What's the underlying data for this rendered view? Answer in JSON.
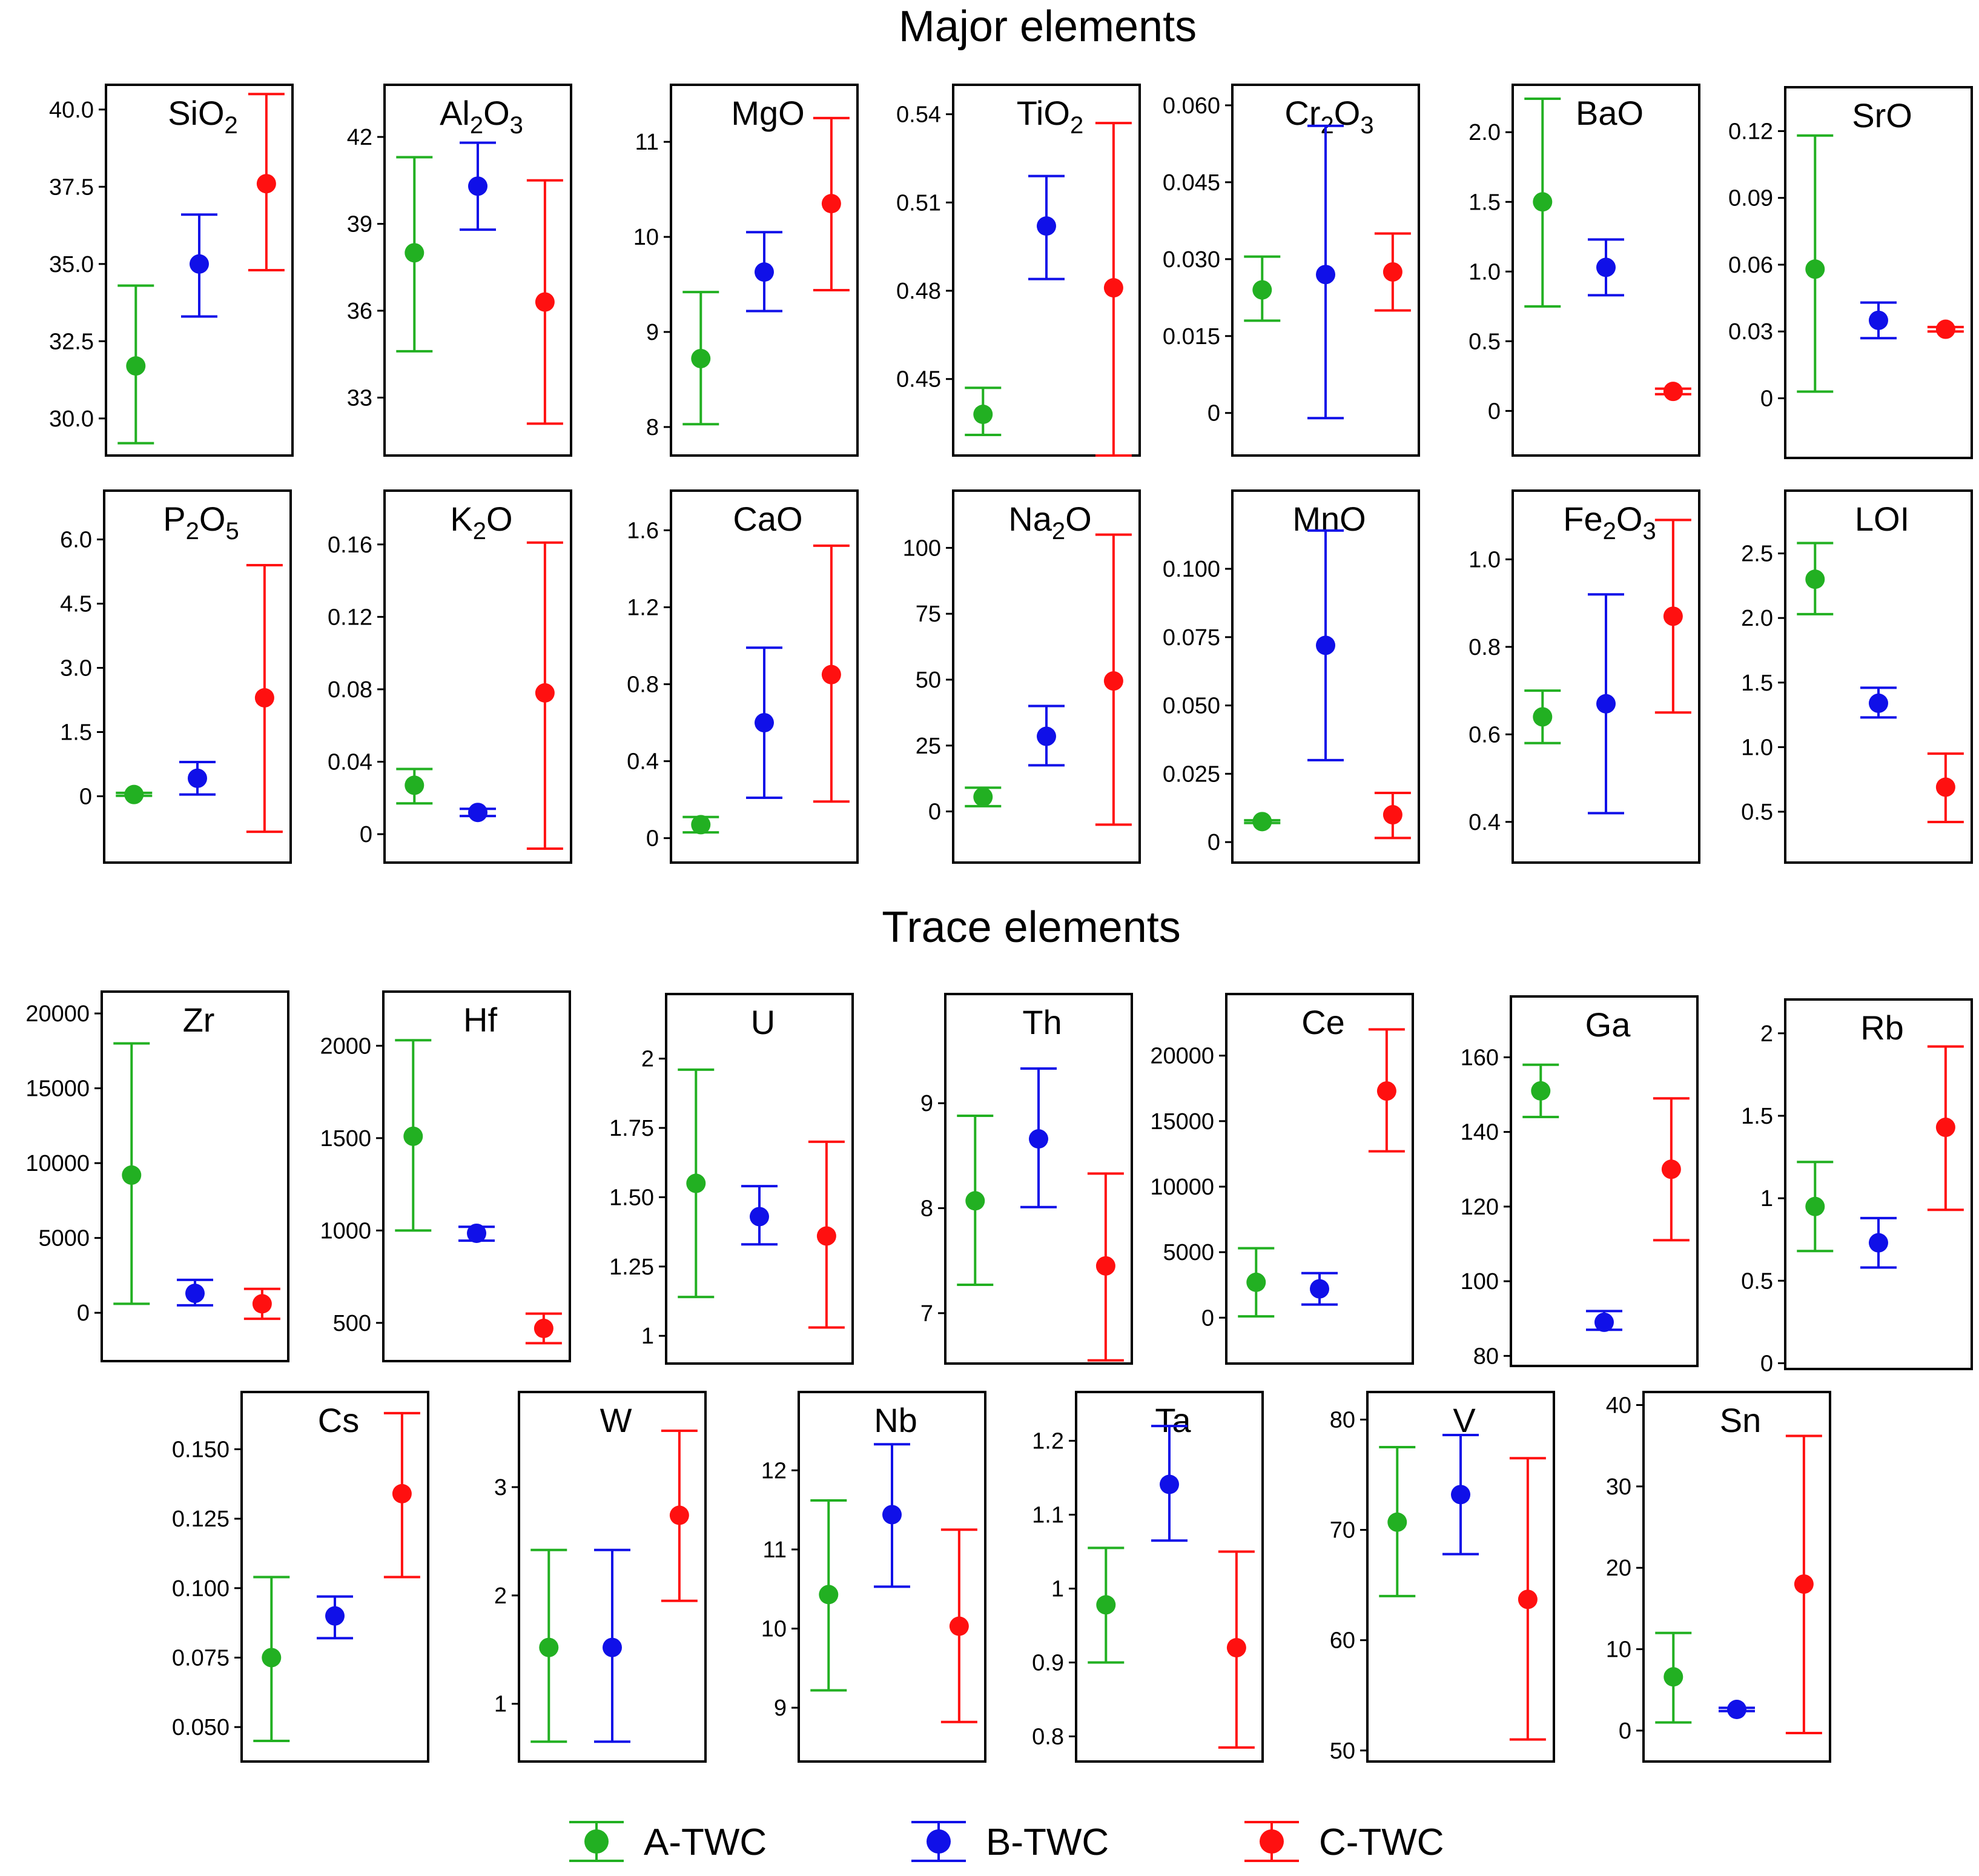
{
  "sections": {
    "major_title": "Major elements",
    "trace_title": "Trace elements"
  },
  "series": [
    {
      "name": "A-TWC",
      "color": "#22b022"
    },
    {
      "name": "B-TWC",
      "color": "#1010e8"
    },
    {
      "name": "C-TWC",
      "color": "#ff1010"
    }
  ],
  "chart_data": [
    {
      "type": "errorbar",
      "title": "SiO",
      "sub": "2",
      "ylim": [
        28.8,
        40.8
      ],
      "ticks": [
        30.0,
        32.5,
        35.0,
        37.5,
        40.0
      ],
      "tick_labels": [
        "30.0",
        "32.5",
        "35.0",
        "37.5",
        "40.0"
      ],
      "points": [
        {
          "series": "A-TWC",
          "mean": 31.7,
          "low": 29.2,
          "high": 34.3
        },
        {
          "series": "B-TWC",
          "mean": 35.0,
          "low": 33.3,
          "high": 36.6
        },
        {
          "series": "C-TWC",
          "mean": 37.6,
          "low": 34.8,
          "high": 40.5
        }
      ]
    },
    {
      "type": "errorbar",
      "title": "Al",
      "sub": "2",
      "title2": "O",
      "sub2": "3",
      "ylim": [
        31.0,
        43.8
      ],
      "ticks": [
        33,
        36,
        39,
        42
      ],
      "tick_labels": [
        "33",
        "36",
        "39",
        "42"
      ],
      "points": [
        {
          "series": "A-TWC",
          "mean": 38.0,
          "low": 34.6,
          "high": 41.3
        },
        {
          "series": "B-TWC",
          "mean": 40.3,
          "low": 38.8,
          "high": 41.8
        },
        {
          "series": "C-TWC",
          "mean": 36.3,
          "low": 32.1,
          "high": 40.5
        }
      ]
    },
    {
      "type": "errorbar",
      "title": "MgO",
      "ylim": [
        7.7,
        11.6
      ],
      "ticks": [
        8,
        9,
        10,
        11
      ],
      "tick_labels": [
        "8",
        "9",
        "10",
        "11"
      ],
      "points": [
        {
          "series": "A-TWC",
          "mean": 8.72,
          "low": 8.03,
          "high": 9.42
        },
        {
          "series": "B-TWC",
          "mean": 9.63,
          "low": 9.22,
          "high": 10.05
        },
        {
          "series": "C-TWC",
          "mean": 10.35,
          "low": 9.44,
          "high": 11.25
        }
      ]
    },
    {
      "type": "errorbar",
      "title": "TiO",
      "sub": "2",
      "ylim": [
        0.424,
        0.55
      ],
      "ticks": [
        0.45,
        0.48,
        0.51,
        0.54
      ],
      "tick_labels": [
        "0.45",
        "0.48",
        "0.51",
        "0.54"
      ],
      "points": [
        {
          "series": "A-TWC",
          "mean": 0.438,
          "low": 0.431,
          "high": 0.447
        },
        {
          "series": "B-TWC",
          "mean": 0.502,
          "low": 0.484,
          "high": 0.519
        },
        {
          "series": "C-TWC",
          "mean": 0.481,
          "low": 0.424,
          "high": 0.537
        }
      ]
    },
    {
      "type": "errorbar",
      "title": "Cr",
      "sub": "2",
      "title2": "O",
      "sub2": "3",
      "ylim": [
        -0.0083,
        0.064
      ],
      "ticks": [
        0,
        0.015,
        0.03,
        0.045,
        0.06
      ],
      "tick_labels": [
        "0",
        "0.015",
        "0.030",
        "0.045",
        "0.060"
      ],
      "points": [
        {
          "series": "A-TWC",
          "mean": 0.024,
          "low": 0.018,
          "high": 0.0305
        },
        {
          "series": "B-TWC",
          "mean": 0.027,
          "low": -0.001,
          "high": 0.056
        },
        {
          "series": "C-TWC",
          "mean": 0.0275,
          "low": 0.02,
          "high": 0.035
        }
      ]
    },
    {
      "type": "errorbar",
      "title": "BaO",
      "ylim": [
        -0.32,
        2.34
      ],
      "ticks": [
        0,
        0.5,
        1.0,
        1.5,
        2.0
      ],
      "tick_labels": [
        "0",
        "0.5",
        "1.0",
        "1.5",
        "2.0"
      ],
      "points": [
        {
          "series": "A-TWC",
          "mean": 1.5,
          "low": 0.75,
          "high": 2.24
        },
        {
          "series": "B-TWC",
          "mean": 1.03,
          "low": 0.83,
          "high": 1.23
        },
        {
          "series": "C-TWC",
          "mean": 0.14,
          "low": 0.12,
          "high": 0.16
        }
      ]
    },
    {
      "type": "errorbar",
      "title": "SrO",
      "ylim": [
        -0.0268,
        0.1397
      ],
      "ticks": [
        0,
        0.03,
        0.06,
        0.09,
        0.12
      ],
      "tick_labels": [
        "0",
        "0.03",
        "0.06",
        "0.09",
        "0.12"
      ],
      "points": [
        {
          "series": "A-TWC",
          "mean": 0.058,
          "low": 0.003,
          "high": 0.118
        },
        {
          "series": "B-TWC",
          "mean": 0.035,
          "low": 0.027,
          "high": 0.043
        },
        {
          "series": "C-TWC",
          "mean": 0.031,
          "low": 0.03,
          "high": 0.032
        }
      ]
    },
    {
      "type": "errorbar",
      "title": "P",
      "sub": "2",
      "title2": "O",
      "sub2": "5",
      "ylim": [
        -1.55,
        7.14
      ],
      "ticks": [
        0,
        1.5,
        3.0,
        4.5,
        6.0
      ],
      "tick_labels": [
        "0",
        "1.5",
        "3.0",
        "4.5",
        "6.0"
      ],
      "points": [
        {
          "series": "A-TWC",
          "mean": 0.04,
          "low": 0.01,
          "high": 0.08
        },
        {
          "series": "B-TWC",
          "mean": 0.42,
          "low": 0.04,
          "high": 0.8
        },
        {
          "series": "C-TWC",
          "mean": 2.3,
          "low": -0.83,
          "high": 5.4
        }
      ]
    },
    {
      "type": "errorbar",
      "title": "K",
      "sub": "2",
      "title2": "O",
      "ylim": [
        -0.0157,
        0.1897
      ],
      "ticks": [
        0,
        0.04,
        0.08,
        0.12,
        0.16
      ],
      "tick_labels": [
        "0",
        "0.04",
        "0.08",
        "0.12",
        "0.16"
      ],
      "points": [
        {
          "series": "A-TWC",
          "mean": 0.027,
          "low": 0.017,
          "high": 0.036
        },
        {
          "series": "B-TWC",
          "mean": 0.012,
          "low": 0.01,
          "high": 0.014
        },
        {
          "series": "C-TWC",
          "mean": 0.078,
          "low": -0.008,
          "high": 0.161
        }
      ]
    },
    {
      "type": "errorbar",
      "title": "CaO",
      "ylim": [
        -0.127,
        1.806
      ],
      "ticks": [
        0,
        0.4,
        0.8,
        1.2,
        1.6
      ],
      "tick_labels": [
        "0",
        "0.4",
        "0.8",
        "1.2",
        "1.6"
      ],
      "points": [
        {
          "series": "A-TWC",
          "mean": 0.07,
          "low": 0.03,
          "high": 0.11
        },
        {
          "series": "B-TWC",
          "mean": 0.6,
          "low": 0.21,
          "high": 0.99
        },
        {
          "series": "C-TWC",
          "mean": 0.85,
          "low": 0.19,
          "high": 1.52
        }
      ]
    },
    {
      "type": "errorbar",
      "title": "Na",
      "sub": "2",
      "title2": "O",
      "ylim": [
        -19.4,
        121.7
      ],
      "ticks": [
        0,
        25,
        50,
        75,
        100
      ],
      "tick_labels": [
        "0",
        "25",
        "50",
        "75",
        "100"
      ],
      "points": [
        {
          "series": "A-TWC",
          "mean": 5.5,
          "low": 2.0,
          "high": 9.0
        },
        {
          "series": "B-TWC",
          "mean": 28.5,
          "low": 17.5,
          "high": 40.0
        },
        {
          "series": "C-TWC",
          "mean": 49.5,
          "low": -5.0,
          "high": 105.0
        }
      ]
    },
    {
      "type": "errorbar",
      "title": "MnO",
      "ylim": [
        -0.0075,
        0.1286
      ],
      "ticks": [
        0,
        0.025,
        0.05,
        0.075,
        0.1
      ],
      "tick_labels": [
        "0",
        "0.025",
        "0.050",
        "0.075",
        "0.100"
      ],
      "points": [
        {
          "series": "A-TWC",
          "mean": 0.0075,
          "low": 0.007,
          "high": 0.008
        },
        {
          "series": "B-TWC",
          "mean": 0.072,
          "low": 0.03,
          "high": 0.114
        },
        {
          "series": "C-TWC",
          "mean": 0.01,
          "low": 0.0015,
          "high": 0.018
        }
      ]
    },
    {
      "type": "errorbar",
      "title": "Fe",
      "sub": "2",
      "title2": "O",
      "sub2": "3",
      "ylim": [
        0.307,
        1.157
      ],
      "ticks": [
        0.4,
        0.6,
        0.8,
        1.0
      ],
      "tick_labels": [
        "0.4",
        "0.6",
        "0.8",
        "1.0"
      ],
      "points": [
        {
          "series": "A-TWC",
          "mean": 0.64,
          "low": 0.58,
          "high": 0.7
        },
        {
          "series": "B-TWC",
          "mean": 0.67,
          "low": 0.42,
          "high": 0.92
        },
        {
          "series": "C-TWC",
          "mean": 0.87,
          "low": 0.65,
          "high": 1.09
        }
      ]
    },
    {
      "type": "errorbar",
      "title": "LOI",
      "ylim": [
        0.106,
        2.986
      ],
      "ticks": [
        0.5,
        1.0,
        1.5,
        2.0,
        2.5
      ],
      "tick_labels": [
        "0.5",
        "1.0",
        "1.5",
        "2.0",
        "2.5"
      ],
      "points": [
        {
          "series": "A-TWC",
          "mean": 2.3,
          "low": 2.03,
          "high": 2.58
        },
        {
          "series": "B-TWC",
          "mean": 1.34,
          "low": 1.23,
          "high": 1.46
        },
        {
          "series": "C-TWC",
          "mean": 0.69,
          "low": 0.42,
          "high": 0.95
        }
      ]
    },
    {
      "type": "errorbar",
      "title": "Zr",
      "ylim": [
        -3229,
        21460
      ],
      "ticks": [
        0,
        5000,
        10000,
        15000,
        20000
      ],
      "tick_labels": [
        "0",
        "5000",
        "10000",
        "15000",
        "20000"
      ],
      "points": [
        {
          "series": "A-TWC",
          "mean": 9200,
          "low": 600,
          "high": 18000
        },
        {
          "series": "B-TWC",
          "mean": 1300,
          "low": 500,
          "high": 2200
        },
        {
          "series": "C-TWC",
          "mean": 600,
          "low": -400,
          "high": 1600
        }
      ]
    },
    {
      "type": "errorbar",
      "title": "Hf",
      "ylim": [
        293,
        2293
      ],
      "ticks": [
        500,
        1000,
        1500,
        2000
      ],
      "tick_labels": [
        "500",
        "1000",
        "1500",
        "2000"
      ],
      "points": [
        {
          "series": "A-TWC",
          "mean": 1510,
          "low": 1000,
          "high": 2030
        },
        {
          "series": "B-TWC",
          "mean": 985,
          "low": 945,
          "high": 1020
        },
        {
          "series": "C-TWC",
          "mean": 470,
          "low": 390,
          "high": 550
        }
      ]
    },
    {
      "type": "errorbar",
      "title": "U",
      "ylim": [
        0.9,
        2.233
      ],
      "ticks": [
        1,
        1.25,
        1.5,
        1.75,
        2
      ],
      "tick_labels": [
        "1",
        "1.25",
        "1.50",
        "1.75",
        "2"
      ],
      "points": [
        {
          "series": "A-TWC",
          "mean": 1.55,
          "low": 1.14,
          "high": 1.96
        },
        {
          "series": "B-TWC",
          "mean": 1.43,
          "low": 1.33,
          "high": 1.54
        },
        {
          "series": "C-TWC",
          "mean": 1.36,
          "low": 1.03,
          "high": 1.7
        }
      ]
    },
    {
      "type": "errorbar",
      "title": "Th",
      "ylim": [
        6.52,
        10.04
      ],
      "ticks": [
        7,
        8,
        9
      ],
      "tick_labels": [
        "7",
        "8",
        "9"
      ],
      "points": [
        {
          "series": "A-TWC",
          "mean": 8.07,
          "low": 7.27,
          "high": 8.88
        },
        {
          "series": "B-TWC",
          "mean": 8.66,
          "low": 8.01,
          "high": 9.33
        },
        {
          "series": "C-TWC",
          "mean": 7.45,
          "low": 6.55,
          "high": 8.33
        }
      ]
    },
    {
      "type": "errorbar",
      "title": "Ce",
      "ylim": [
        -3500,
        24700
      ],
      "ticks": [
        0,
        5000,
        10000,
        15000,
        20000
      ],
      "tick_labels": [
        "0",
        "5000",
        "10000",
        "15000",
        "20000"
      ],
      "points": [
        {
          "series": "A-TWC",
          "mean": 2700,
          "low": 100,
          "high": 5300
        },
        {
          "series": "B-TWC",
          "mean": 2200,
          "low": 1000,
          "high": 3400
        },
        {
          "series": "C-TWC",
          "mean": 17300,
          "low": 12700,
          "high": 22000
        }
      ]
    },
    {
      "type": "errorbar",
      "title": "Ga",
      "ylim": [
        77.3,
        176.3
      ],
      "ticks": [
        80,
        100,
        120,
        140,
        160
      ],
      "tick_labels": [
        "80",
        "100",
        "120",
        "140",
        "160"
      ],
      "points": [
        {
          "series": "A-TWC",
          "mean": 151,
          "low": 144,
          "high": 158
        },
        {
          "series": "B-TWC",
          "mean": 89,
          "low": 87,
          "high": 92
        },
        {
          "series": "C-TWC",
          "mean": 130,
          "low": 111,
          "high": 149
        }
      ]
    },
    {
      "type": "errorbar",
      "title": "Rb",
      "ylim": [
        -0.035,
        2.205
      ],
      "ticks": [
        0,
        0.5,
        1,
        1.5,
        2
      ],
      "tick_labels": [
        "0",
        "0.5",
        "1",
        "1.5",
        "2"
      ],
      "points": [
        {
          "series": "A-TWC",
          "mean": 0.95,
          "low": 0.68,
          "high": 1.22
        },
        {
          "series": "B-TWC",
          "mean": 0.73,
          "low": 0.58,
          "high": 0.88
        },
        {
          "series": "C-TWC",
          "mean": 1.43,
          "low": 0.93,
          "high": 1.92
        }
      ]
    },
    {
      "type": "errorbar",
      "title": "Cs",
      "ylim": [
        0.0376,
        0.1706
      ],
      "ticks": [
        0.05,
        0.075,
        0.1,
        0.125,
        0.15
      ],
      "tick_labels": [
        "0.050",
        "0.075",
        "0.100",
        "0.125",
        "0.150"
      ],
      "points": [
        {
          "series": "A-TWC",
          "mean": 0.075,
          "low": 0.045,
          "high": 0.104
        },
        {
          "series": "B-TWC",
          "mean": 0.09,
          "low": 0.082,
          "high": 0.097
        },
        {
          "series": "C-TWC",
          "mean": 0.134,
          "low": 0.104,
          "high": 0.163
        }
      ]
    },
    {
      "type": "errorbar",
      "title": "W",
      "ylim": [
        0.467,
        3.878
      ],
      "ticks": [
        1,
        2,
        3
      ],
      "tick_labels": [
        "1",
        "2",
        "3"
      ],
      "points": [
        {
          "series": "A-TWC",
          "mean": 1.52,
          "low": 0.65,
          "high": 2.42
        },
        {
          "series": "B-TWC",
          "mean": 1.52,
          "low": 0.65,
          "high": 2.42
        },
        {
          "series": "C-TWC",
          "mean": 2.74,
          "low": 1.95,
          "high": 3.52
        }
      ]
    },
    {
      "type": "errorbar",
      "title": "Nb",
      "ylim": [
        8.32,
        12.99
      ],
      "ticks": [
        9,
        10,
        11,
        12
      ],
      "tick_labels": [
        "9",
        "10",
        "11",
        "12"
      ],
      "points": [
        {
          "series": "A-TWC",
          "mean": 10.43,
          "low": 9.22,
          "high": 11.62
        },
        {
          "series": "B-TWC",
          "mean": 11.44,
          "low": 10.53,
          "high": 12.33
        },
        {
          "series": "C-TWC",
          "mean": 10.03,
          "low": 8.82,
          "high": 11.25
        }
      ]
    },
    {
      "type": "errorbar",
      "title": "Ta",
      "ylim": [
        0.766,
        1.266
      ],
      "ticks": [
        0.8,
        0.9,
        1,
        1.1,
        1.2
      ],
      "tick_labels": [
        "0.8",
        "0.9",
        "1",
        "1.1",
        "1.2"
      ],
      "points": [
        {
          "series": "A-TWC",
          "mean": 0.978,
          "low": 0.9,
          "high": 1.055
        },
        {
          "series": "B-TWC",
          "mean": 1.141,
          "low": 1.065,
          "high": 1.22
        },
        {
          "series": "C-TWC",
          "mean": 0.92,
          "low": 0.785,
          "high": 1.05
        }
      ]
    },
    {
      "type": "errorbar",
      "title": "V",
      "ylim": [
        49.0,
        82.5
      ],
      "ticks": [
        50,
        60,
        70,
        80
      ],
      "tick_labels": [
        "50",
        "60",
        "70",
        "80"
      ],
      "points": [
        {
          "series": "A-TWC",
          "mean": 70.7,
          "low": 64.0,
          "high": 77.5
        },
        {
          "series": "B-TWC",
          "mean": 73.2,
          "low": 67.8,
          "high": 78.6
        },
        {
          "series": "C-TWC",
          "mean": 63.7,
          "low": 51.0,
          "high": 76.5
        }
      ]
    },
    {
      "type": "errorbar",
      "title": "Sn",
      "ylim": [
        -3.8,
        41.6
      ],
      "ticks": [
        0,
        10,
        20,
        30,
        40
      ],
      "tick_labels": [
        "0",
        "10",
        "20",
        "30",
        "40"
      ],
      "points": [
        {
          "series": "A-TWC",
          "mean": 6.6,
          "low": 1.0,
          "high": 12.0
        },
        {
          "series": "B-TWC",
          "mean": 2.6,
          "low": 2.4,
          "high": 2.8
        },
        {
          "series": "C-TWC",
          "mean": 18.0,
          "low": -0.3,
          "high": 36.2
        }
      ]
    }
  ]
}
